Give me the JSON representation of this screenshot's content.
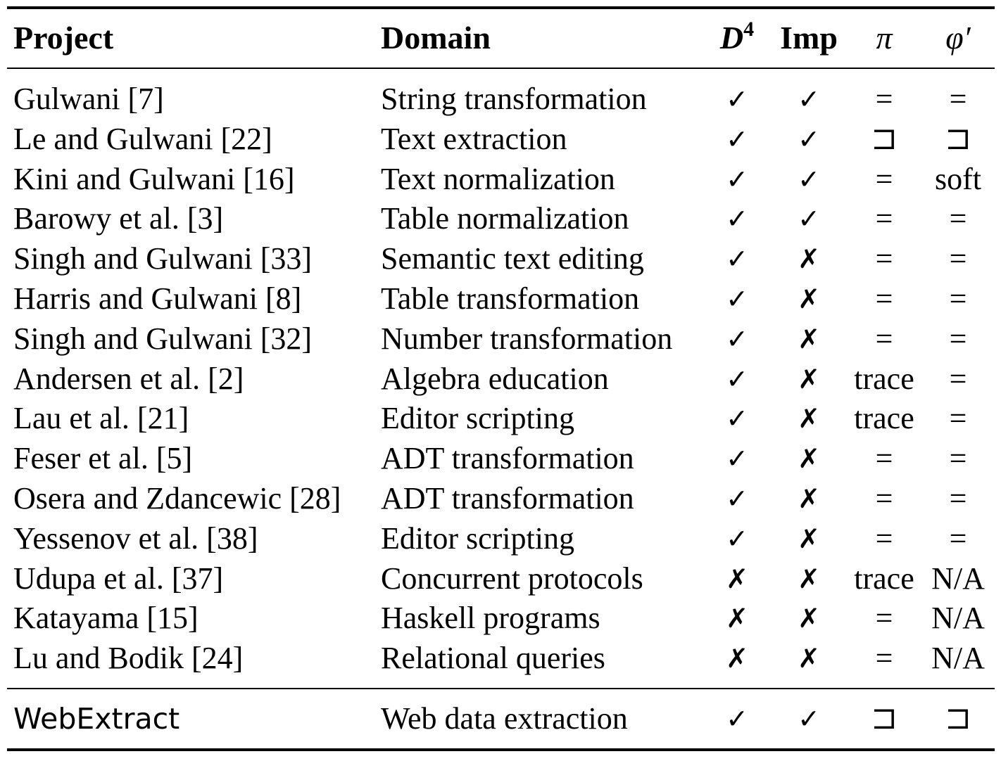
{
  "table": {
    "headers": {
      "project": "Project",
      "domain": "Domain",
      "d4_base": "D",
      "d4_sup": "4",
      "imp": "Imp",
      "pi": "π",
      "phi": "φ′"
    },
    "rows": [
      {
        "project": "Gulwani [7]",
        "domain": "String transformation",
        "d4": "✓",
        "imp": "✓",
        "pi": "=",
        "phi": "="
      },
      {
        "project": "Le and Gulwani [22]",
        "domain": "Text extraction",
        "d4": "✓",
        "imp": "✓",
        "pi": "⊐",
        "phi": "⊐"
      },
      {
        "project": "Kini and Gulwani [16]",
        "domain": "Text normalization",
        "d4": "✓",
        "imp": "✓",
        "pi": "=",
        "phi": "soft"
      },
      {
        "project": "Barowy et al. [3]",
        "domain": "Table normalization",
        "d4": "✓",
        "imp": "✓",
        "pi": "=",
        "phi": "="
      },
      {
        "project": "Singh and Gulwani [33]",
        "domain": "Semantic text editing",
        "d4": "✓",
        "imp": "✗",
        "pi": "=",
        "phi": "="
      },
      {
        "project": "Harris and Gulwani [8]",
        "domain": "Table transformation",
        "d4": "✓",
        "imp": "✗",
        "pi": "=",
        "phi": "="
      },
      {
        "project": "Singh and Gulwani [32]",
        "domain": "Number transformation",
        "d4": "✓",
        "imp": "✗",
        "pi": "=",
        "phi": "="
      },
      {
        "project": "Andersen et al. [2]",
        "domain": "Algebra education",
        "d4": "✓",
        "imp": "✗",
        "pi": "trace",
        "phi": "="
      },
      {
        "project": "Lau et al. [21]",
        "domain": "Editor scripting",
        "d4": "✓",
        "imp": "✗",
        "pi": "trace",
        "phi": "="
      },
      {
        "project": "Feser et al. [5]",
        "domain": "ADT transformation",
        "d4": "✓",
        "imp": "✗",
        "pi": "=",
        "phi": "="
      },
      {
        "project": "Osera and Zdancewic [28]",
        "domain": "ADT transformation",
        "d4": "✓",
        "imp": "✗",
        "pi": "=",
        "phi": "="
      },
      {
        "project": "Yessenov et al. [38]",
        "domain": "Editor scripting",
        "d4": "✓",
        "imp": "✗",
        "pi": "=",
        "phi": "="
      },
      {
        "project": "Udupa et al. [37]",
        "domain": "Concurrent protocols",
        "d4": "✗",
        "imp": "✗",
        "pi": "trace",
        "phi": "N/A"
      },
      {
        "project": "Katayama [15]",
        "domain": "Haskell programs",
        "d4": "✗",
        "imp": "✗",
        "pi": "=",
        "phi": "N/A"
      },
      {
        "project": "Lu and Bodik [24]",
        "domain": "Relational queries",
        "d4": "✗",
        "imp": "✗",
        "pi": "=",
        "phi": "N/A"
      }
    ],
    "footer_row": {
      "project": "WebExtract",
      "domain": "Web data extraction",
      "d4": "✓",
      "imp": "✓",
      "pi": "⊐",
      "phi": "⊐"
    }
  }
}
